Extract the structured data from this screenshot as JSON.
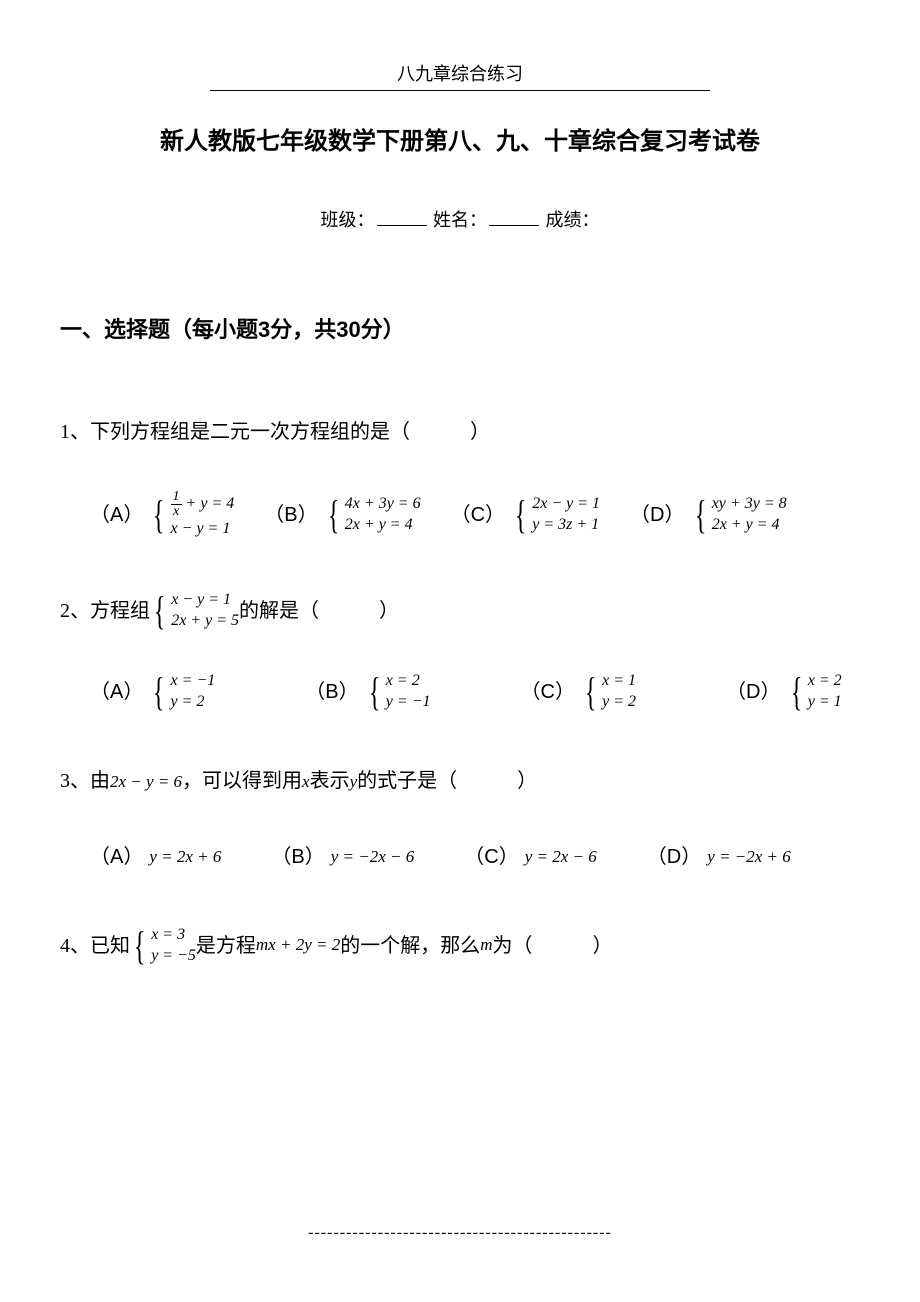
{
  "header": "八九章综合练习",
  "title": "新人教版七年级数学下册第八、九、十章综合复习考试卷",
  "info": {
    "class_label": "班级：",
    "name_label": "姓名：",
    "score_label": "成绩："
  },
  "section1": "一、选择题（每小题3分，共30分）",
  "q1": {
    "num": "1、",
    "stem": "下列方程组是二元一次方程组的是（",
    "close": "）",
    "A": "（A）",
    "B": "（B）",
    "C": "（C）",
    "D": "（D）",
    "a1_top_pre": "",
    "a1_top_post": " + y = 4",
    "a1_bot": "x − y = 1",
    "b1_top": "4x + 3y = 6",
    "b1_bot": "2x + y = 4",
    "c1_top": "2x − y = 1",
    "c1_bot": "y = 3z + 1",
    "d1_top": "xy + 3y = 8",
    "d1_bot": "2x + y = 4"
  },
  "q2": {
    "num": "2、",
    "stem_pre": "方程组",
    "sys_top": "x − y = 1",
    "sys_bot": "2x + y = 5",
    "stem_post": " 的解是（",
    "close": "）",
    "A": "（A）",
    "B": "（B）",
    "C": "（C）",
    "D": "（D）",
    "a_top": "x = −1",
    "a_bot": "y = 2",
    "b_top": "x = 2",
    "b_bot": "y = −1",
    "c_top": "x = 1",
    "c_bot": "y = 2",
    "d_top": "x = 2",
    "d_bot": "y = 1"
  },
  "q3": {
    "num": "3、",
    "stem_pre": "由",
    "eq1": "2x − y = 6",
    "mid1": "，可以得到用",
    "var1": "x",
    "mid2": "表示",
    "var2": "y",
    "stem_post": "的式子是（",
    "close": "）",
    "A": "（A）",
    "B": "（B）",
    "C": "（C）",
    "D": "（D）",
    "a_eq": "y = 2x + 6",
    "b_eq": "y = −2x − 6",
    "c_eq": "y = 2x − 6",
    "d_eq": "y = −2x + 6"
  },
  "q4": {
    "num": "4、",
    "stem_pre": "已知",
    "sys_top": "x = 3",
    "sys_bot": "y = −5",
    "mid1": "是方程",
    "eq": "mx + 2y = 2",
    "mid2": "的一个解，那么",
    "var": "m",
    "stem_post": "为（",
    "close": "）"
  },
  "dashes": "------------------------------------------------",
  "frac1_num": "1",
  "frac1_den": "x"
}
